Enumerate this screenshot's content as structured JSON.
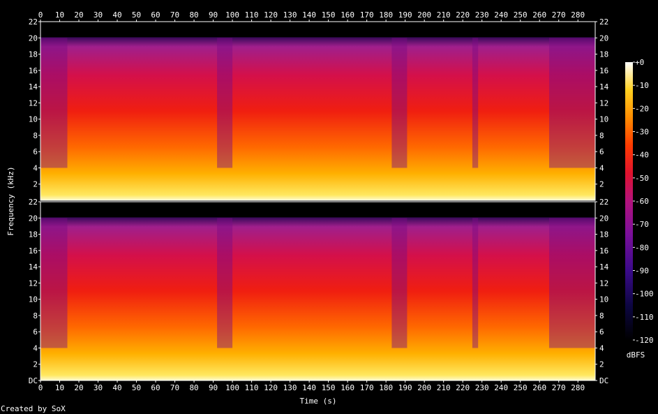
{
  "chart_data": {
    "type": "heatmap",
    "title": "",
    "xlabel": "Time (s)",
    "ylabel": "Frequency (kHz)",
    "colorbar_label": "dBFS",
    "footer": "Created by SoX",
    "x_ticks": [
      "0",
      "10",
      "20",
      "30",
      "40",
      "50",
      "60",
      "70",
      "80",
      "90",
      "100",
      "110",
      "120",
      "130",
      "140",
      "150",
      "160",
      "170",
      "180",
      "190",
      "200",
      "210",
      "220",
      "230",
      "240",
      "250",
      "260",
      "270",
      "280"
    ],
    "x_range": [
      0,
      289
    ],
    "channels": [
      {
        "y_ticks": [
          "22",
          "20",
          "18",
          "16",
          "14",
          "12",
          "10",
          "8",
          "6",
          "4",
          "2"
        ],
        "y_range": [
          0,
          22
        ]
      },
      {
        "y_ticks": [
          "22",
          "20",
          "18",
          "16",
          "14",
          "12",
          "10",
          "8",
          "6",
          "4",
          "2",
          "DC"
        ],
        "y_range": [
          0,
          22
        ]
      }
    ],
    "colorbar_ticks": [
      "+0",
      "-10",
      "-20",
      "-30",
      "-40",
      "-50",
      "-60",
      "-70",
      "-80",
      "-90",
      "-100",
      "-110",
      "-120"
    ],
    "colorbar_range": [
      -120,
      0
    ],
    "spectral_cutoff_khz": 20,
    "low_energy_segments_s": [
      [
        0,
        14
      ],
      [
        92,
        100
      ],
      [
        183,
        191
      ],
      [
        225,
        228
      ],
      [
        265,
        289
      ]
    ],
    "colors": {
      "background": "#000000",
      "text": "#ffffff",
      "axis": "#ffffff"
    }
  }
}
